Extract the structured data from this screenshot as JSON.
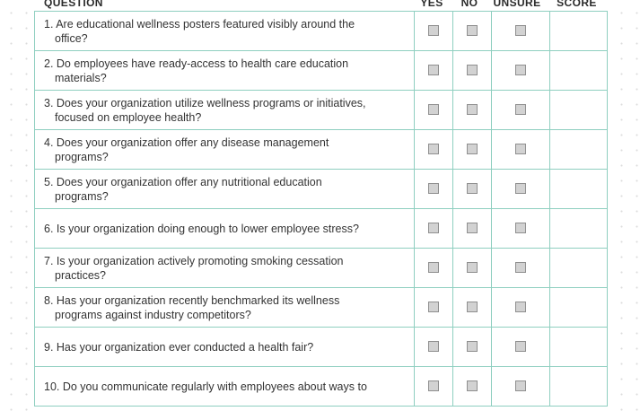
{
  "header": {
    "question": "QUESTION",
    "yes": "YES",
    "no": "NO",
    "unsure": "UNSURE",
    "score": "SCORE"
  },
  "questions": [
    {
      "text": "1. Are educational wellness posters featured visibly around the office?"
    },
    {
      "text": "2. Do employees have ready-access to health care education materials?"
    },
    {
      "text": "3. Does your organization utilize wellness programs or initiatives, focused on employee health?"
    },
    {
      "text": "4. Does your organization offer any disease management programs?"
    },
    {
      "text": "5. Does your organization offer any nutritional education programs?"
    },
    {
      "text": "6. Is your organization doing enough to lower employee stress?"
    },
    {
      "text": "7. Is your organization actively promoting smoking cessation practices?"
    },
    {
      "text": "8. Has your organization recently benchmarked its wellness programs against industry competitors?"
    },
    {
      "text": "9. Has your organization ever conducted a health fair?"
    },
    {
      "text": "10. Do you communicate regularly with employees about ways to"
    }
  ],
  "checkbox_color": "#d2d2d2",
  "grid_color": "#8fcfc0"
}
